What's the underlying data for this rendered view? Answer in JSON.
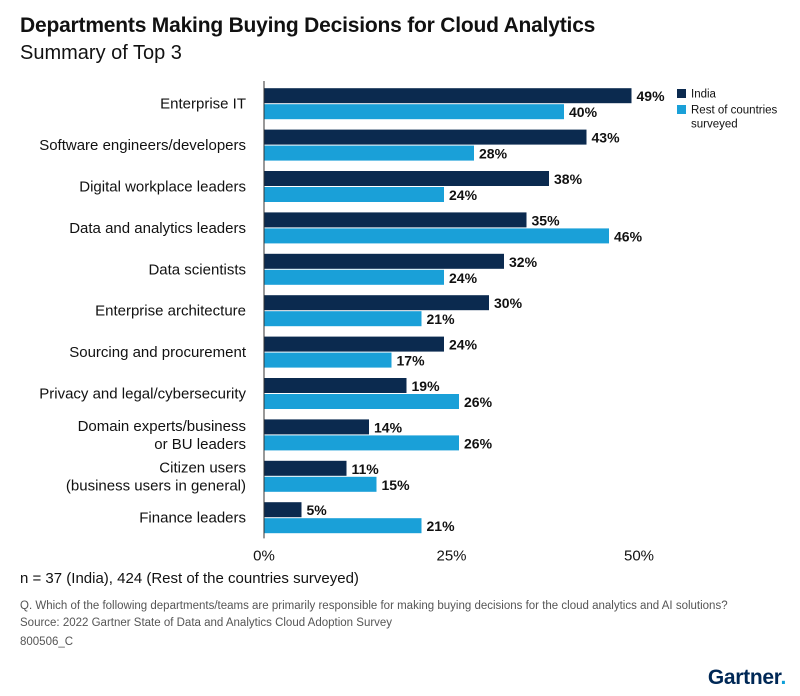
{
  "header": {
    "title": "Departments Making Buying Decisions for Cloud Analytics",
    "subtitle": "Summary of Top 3"
  },
  "chart_data": {
    "type": "bar",
    "orientation": "horizontal",
    "title": "Departments Making Buying Decisions for Cloud Analytics",
    "subtitle": "Summary of Top 3",
    "categories": [
      [
        "Enterprise IT"
      ],
      [
        "Software engineers/developers"
      ],
      [
        "Digital workplace leaders"
      ],
      [
        "Data and analytics leaders"
      ],
      [
        "Data scientists"
      ],
      [
        "Enterprise architecture"
      ],
      [
        "Sourcing and procurement"
      ],
      [
        "Privacy and legal/cybersecurity"
      ],
      [
        "Domain experts/business",
        "or BU leaders"
      ],
      [
        "Citizen users",
        "(business users in general)"
      ],
      [
        "Finance leaders"
      ]
    ],
    "series": [
      {
        "name": "India",
        "color": "#0b2a4f",
        "values": [
          49,
          43,
          38,
          35,
          32,
          30,
          24,
          19,
          14,
          11,
          5
        ]
      },
      {
        "name": "Rest of countries surveyed",
        "legend_lines": [
          "Rest of countries",
          "surveyed"
        ],
        "color": "#1aa0d8",
        "values": [
          40,
          28,
          24,
          46,
          24,
          21,
          17,
          26,
          26,
          15,
          21
        ]
      }
    ],
    "value_suffix": "%",
    "xlim": [
      0,
      50
    ],
    "xticks": [
      0,
      25,
      50
    ],
    "xtick_labels": [
      "0%",
      "25%",
      "50%"
    ],
    "xlabel": "",
    "ylabel": "",
    "legend_position": "top-right"
  },
  "footer": {
    "sample_note": "n = 37 (India), 424 (Rest of the countries surveyed)",
    "question": "Q. Which of the following departments/teams are primarily responsible for making buying decisions for the cloud analytics and AI solutions?",
    "source": "Source: 2022 Gartner State of Data and Analytics Cloud Adoption Survey",
    "code": "800506_C"
  },
  "brand": {
    "name": "Gartner",
    "dot": "."
  }
}
